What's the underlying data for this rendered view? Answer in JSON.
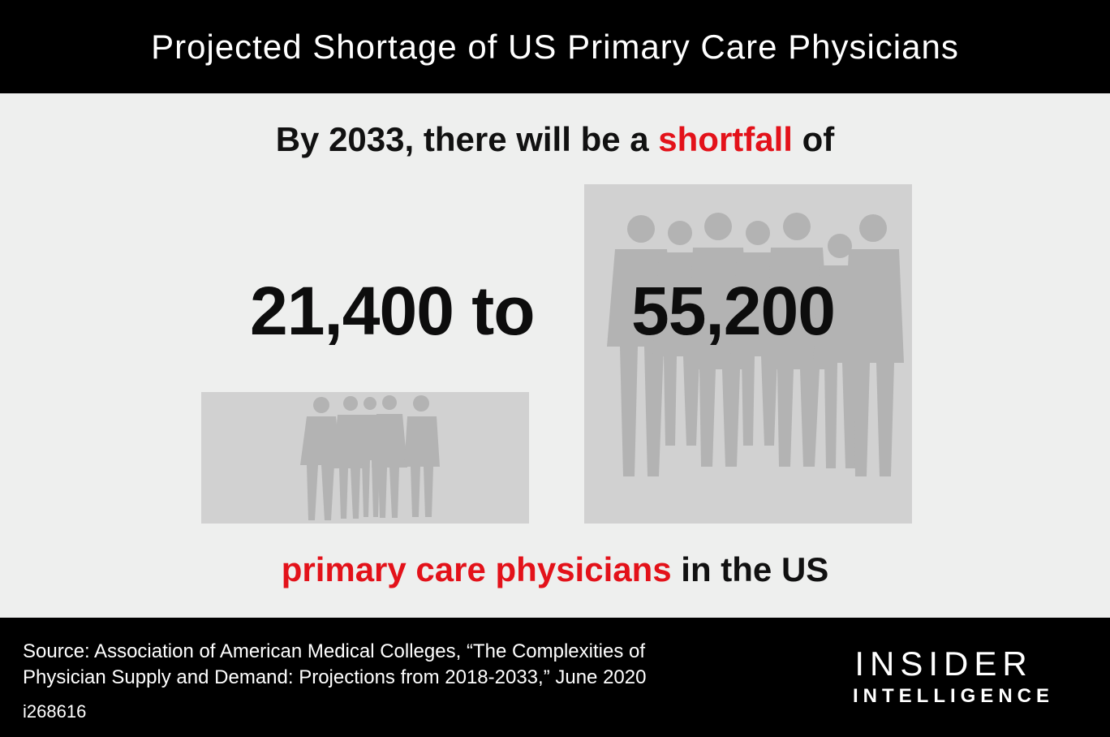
{
  "header": {
    "title": "Projected Shortage of US Primary Care Physicians"
  },
  "headline": {
    "prefix": "By 2033, there will be a ",
    "highlight": "shortfall",
    "suffix": " of"
  },
  "range": {
    "low": "21,400 to",
    "high": "55,200"
  },
  "subline": {
    "highlight": "primary care physicians",
    "suffix": " in the US"
  },
  "footer": {
    "source_line1": "Source: Association of American Medical Colleges, “The Complexities of",
    "source_line2": "Physician Supply and Demand: Projections from 2018-2033,” June 2020",
    "chart_id": "i268616",
    "logo_line1": "INSIDER",
    "logo_line2": "INTELLIGENCE"
  },
  "colors": {
    "accent": "#e3121a",
    "band": "#000000",
    "background": "#eeefee",
    "photo": "#d1d1d1"
  }
}
